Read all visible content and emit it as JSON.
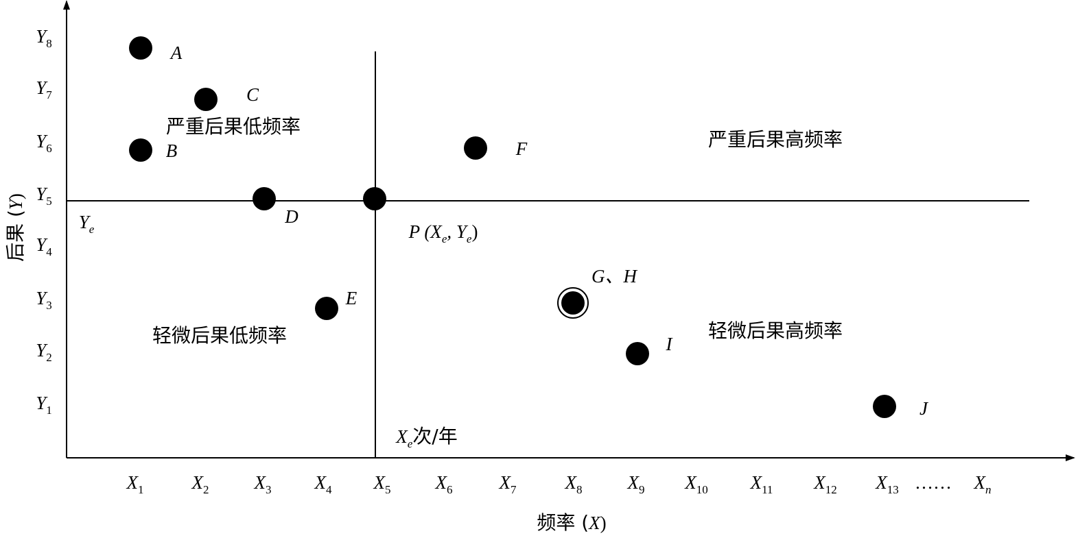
{
  "axes": {
    "y_title": [
      {
        "text": "后果 ("
      },
      {
        "text": "Y"
      },
      {
        "text": ")"
      }
    ],
    "x_title": [
      {
        "text": "频率 ("
      },
      {
        "text": "X"
      },
      {
        "text": ")"
      }
    ],
    "x_ticks": [
      [
        {
          "text": "X"
        },
        {
          "sub": "1"
        }
      ],
      [
        {
          "text": "X"
        },
        {
          "sub": "2"
        }
      ],
      [
        {
          "text": "X"
        },
        {
          "sub": "3"
        }
      ],
      [
        {
          "text": "X"
        },
        {
          "sub": "4"
        }
      ],
      [
        {
          "text": "X"
        },
        {
          "sub": "5"
        }
      ],
      [
        {
          "text": "X"
        },
        {
          "sub": "6"
        }
      ],
      [
        {
          "text": "X"
        },
        {
          "sub": "7"
        }
      ],
      [
        {
          "text": "X"
        },
        {
          "sub": "8"
        }
      ],
      [
        {
          "text": "X"
        },
        {
          "sub": "9"
        }
      ],
      [
        {
          "text": "X"
        },
        {
          "sub": "10"
        }
      ],
      [
        {
          "text": "X"
        },
        {
          "sub": "11"
        }
      ],
      [
        {
          "text": "X"
        },
        {
          "sub": "12"
        }
      ],
      [
        {
          "text": "X"
        },
        {
          "sub": "13"
        }
      ],
      [
        {
          "text": "……"
        }
      ],
      [
        {
          "text": "X"
        },
        {
          "sub": "n"
        }
      ]
    ],
    "y_ticks": [
      [
        {
          "text": "Y"
        },
        {
          "sub": "8"
        }
      ],
      [
        {
          "text": "Y"
        },
        {
          "sub": "7"
        }
      ],
      [
        {
          "text": "Y"
        },
        {
          "sub": "6"
        }
      ],
      [
        {
          "text": "Y"
        },
        {
          "sub": "5"
        }
      ],
      [
        {
          "text": "Y"
        },
        {
          "sub": "4"
        }
      ],
      [
        {
          "text": "Y"
        },
        {
          "sub": "3"
        }
      ],
      [
        {
          "text": "Y"
        },
        {
          "sub": "2"
        }
      ],
      [
        {
          "text": "Y"
        },
        {
          "sub": "1"
        }
      ]
    ]
  },
  "threshold": {
    "y_label": [
      {
        "text": "Y"
      },
      {
        "sub": "e"
      }
    ],
    "x_label": [
      {
        "text": "X"
      },
      {
        "sub": "e"
      },
      {
        "text": "次/年"
      }
    ],
    "point_label": [
      {
        "text": "P (X"
      },
      {
        "sub": "e"
      },
      {
        "text": ", Y"
      },
      {
        "sub": "e"
      },
      {
        "text": ")"
      }
    ]
  },
  "quadrants": [
    "严重后果低频率",
    "严重后果高频率",
    "轻微后果低频率",
    "轻微后果高频率"
  ],
  "points": [
    "A",
    "C",
    "B",
    "D",
    "F",
    "E",
    "G、H",
    "I",
    "J"
  ]
}
